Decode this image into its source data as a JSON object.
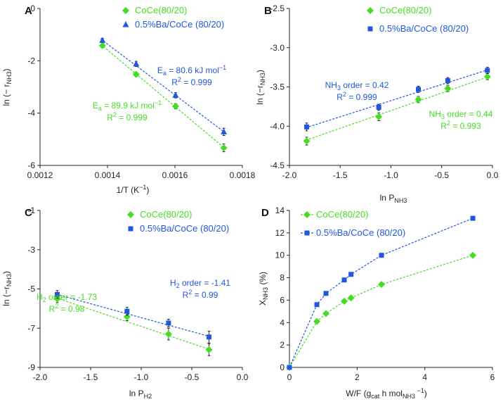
{
  "colors": {
    "green": "#44dd22",
    "blue": "#1f57e0",
    "axis": "#222222",
    "errorbar": "#000000"
  },
  "chart_data": [
    {
      "id": "A",
      "panel_label": "A",
      "type": "scatter",
      "xlabel": "1/T (K",
      "xlabel_sup": "−1",
      "xlabel_tail": ")",
      "ylabel": "ln (− r",
      "ylabel_sub": "NH3",
      "ylabel_tail": ")",
      "xlim": [
        0.0012,
        0.0018
      ],
      "ylim": [
        -6,
        0
      ],
      "xticks": [
        0.0012,
        0.0014,
        0.0016,
        0.0018
      ],
      "xtick_labels": [
        "0.0012",
        "0.0014",
        "0.0016",
        "0.0018"
      ],
      "yticks": [
        0,
        -2,
        -4,
        -6
      ],
      "ytick_labels": [
        "0",
        "-2",
        "-4",
        "-6"
      ],
      "series": [
        {
          "name": "CoCe(80/20)",
          "color": "green",
          "marker": "diamond",
          "x": [
            0.001385,
            0.001485,
            0.001602,
            0.001745
          ],
          "y": [
            -1.42,
            -2.52,
            -3.74,
            -5.33
          ],
          "err": [
            0.08,
            0.08,
            0.1,
            0.15
          ],
          "fit": [
            [
              0.00138,
              -1.37
            ],
            [
              0.00175,
              -5.37
            ]
          ]
        },
        {
          "name": "0.5%Ba/CoCe (80/20)",
          "color": "blue",
          "marker": "triangle",
          "x": [
            0.001385,
            0.001485,
            0.001602,
            0.001745
          ],
          "y": [
            -1.22,
            -2.12,
            -3.32,
            -4.72
          ],
          "err": [
            0.08,
            0.1,
            0.1,
            0.14
          ],
          "fit": [
            [
              0.00138,
              -1.17
            ],
            [
              0.00175,
              -4.76
            ]
          ]
        }
      ],
      "annotations": [
        {
          "series": 1,
          "lines": [
            {
              "pre": "E",
              "sub": "a",
              "post": " = 80.6 kJ mol",
              "sup": "−1"
            },
            {
              "pre": "R",
              "sup": "2",
              "post": " = 0.999"
            }
          ]
        },
        {
          "series": 0,
          "lines": [
            {
              "pre": "E",
              "sub": "a",
              "post": " = 89.9 kJ mol",
              "sup": "−1"
            },
            {
              "pre": "R",
              "sup": "2",
              "post": " = 0.999"
            }
          ]
        }
      ]
    },
    {
      "id": "B",
      "panel_label": "B",
      "type": "scatter",
      "xlabel": "ln P",
      "xlabel_sub": "NH3",
      "ylabel": "ln (−r",
      "ylabel_sub": "NH3",
      "ylabel_tail": ")",
      "xlim": [
        -2.0,
        0.0
      ],
      "ylim": [
        -4.5,
        -2.5
      ],
      "xticks": [
        -2.0,
        -1.5,
        -1.0,
        -0.5,
        0.0
      ],
      "xtick_labels": [
        "-2.0",
        "-1.5",
        "-1.0",
        "-0.5",
        "0.0"
      ],
      "yticks": [
        -2.5,
        -3.0,
        -3.5,
        -4.0,
        -4.5
      ],
      "ytick_labels": [
        "-2.5",
        "-3.0",
        "-3.5",
        "-4.0",
        "-4.5"
      ],
      "series": [
        {
          "name": "CoCe(80/20)",
          "color": "green",
          "marker": "diamond",
          "x": [
            -1.83,
            -1.12,
            -0.73,
            -0.44,
            -0.05
          ],
          "y": [
            -4.19,
            -3.88,
            -3.66,
            -3.52,
            -3.37
          ],
          "err": [
            0.05,
            0.05,
            0.04,
            0.04,
            0.04
          ],
          "fit": [
            [
              -1.84,
              -4.18
            ],
            [
              -0.04,
              -3.37
            ]
          ]
        },
        {
          "name": "0.5%Ba/CoCe (80/20)",
          "color": "blue",
          "marker": "square",
          "x": [
            -1.83,
            -1.12,
            -0.73,
            -0.44,
            -0.05
          ],
          "y": [
            -4.01,
            -3.76,
            -3.53,
            -3.42,
            -3.29
          ],
          "err": [
            0.05,
            0.04,
            0.04,
            0.04,
            0.04
          ],
          "fit": [
            [
              -1.84,
              -4.02
            ],
            [
              -0.04,
              -3.28
            ]
          ]
        }
      ],
      "annotations": [
        {
          "series": 1,
          "lines": [
            {
              "pre": "NH",
              "sub": "3",
              "post": " order = 0.42"
            },
            {
              "pre": "R",
              "sup": "2",
              "post": " = 0.999"
            }
          ]
        },
        {
          "series": 0,
          "lines": [
            {
              "pre": "NH",
              "sub": "3",
              "post": " order = 0.44"
            },
            {
              "pre": "R",
              "sup": "2",
              "post": " = 0.993"
            }
          ]
        }
      ]
    },
    {
      "id": "C",
      "panel_label": "C",
      "type": "scatter",
      "xlabel": "ln P",
      "xlabel_sub": "H2",
      "ylabel": "ln (−r",
      "ylabel_sub": "NH3",
      "ylabel_tail": ")",
      "xlim": [
        -2.0,
        0.0
      ],
      "ylim": [
        -9,
        -1
      ],
      "xticks": [
        -2.0,
        -1.5,
        -1.0,
        -0.5,
        0.0
      ],
      "xtick_labels": [
        "-2.0",
        "-1.5",
        "-1.0",
        "-0.5",
        "0.0"
      ],
      "yticks": [
        -1,
        -3,
        -5,
        -7,
        -9
      ],
      "ytick_labels": [
        "-1",
        "-3",
        "-5",
        "-7",
        "-9"
      ],
      "series": [
        {
          "name": "CoCe(80/20)",
          "color": "green",
          "marker": "diamond",
          "x": [
            -1.83,
            -1.14,
            -0.73,
            -0.33
          ],
          "y": [
            -5.5,
            -6.42,
            -7.3,
            -8.1
          ],
          "err": [
            0.2,
            0.2,
            0.3,
            0.3
          ],
          "fit": [
            [
              -1.84,
              -5.46
            ],
            [
              -0.32,
              -8.09
            ]
          ]
        },
        {
          "name": "0.5%Ba/CoCe (80/20)",
          "color": "blue",
          "marker": "square",
          "x": [
            -1.83,
            -1.14,
            -0.73,
            -0.33
          ],
          "y": [
            -5.28,
            -6.14,
            -6.74,
            -7.45
          ],
          "err": [
            0.2,
            0.2,
            0.2,
            0.3
          ],
          "fit": [
            [
              -1.84,
              -5.27
            ],
            [
              -0.32,
              -7.43
            ]
          ]
        }
      ],
      "annotations": [
        {
          "series": 1,
          "lines": [
            {
              "pre": "H",
              "sub": "2",
              "post": " order =  -1.41"
            },
            {
              "pre": "R",
              "sup": "2",
              "post": " = 0.99"
            }
          ]
        },
        {
          "series": 0,
          "lines": [
            {
              "pre": "H",
              "sub": "2",
              "post": " order = -1.73"
            },
            {
              "pre": "R",
              "sup": "2",
              "post": " = 0.98"
            }
          ]
        }
      ]
    },
    {
      "id": "D",
      "panel_label": "D",
      "type": "line",
      "xlabel": "W/F (g",
      "xlabel_sub": "cat",
      "xlabel_mid": " h mol",
      "xlabel_sub2": "NH3",
      "xlabel_sup": " −1",
      "xlabel_tail": ")",
      "ylabel": "X",
      "ylabel_sub": "NH3",
      "ylabel_tail": " (%)",
      "xlim": [
        0,
        6
      ],
      "ylim": [
        0,
        14
      ],
      "xticks": [
        0,
        2,
        4,
        6
      ],
      "xtick_labels": [
        "0",
        "2",
        "4",
        "6"
      ],
      "yticks": [
        0,
        2,
        4,
        6,
        8,
        10,
        12,
        14
      ],
      "ytick_labels": [
        "0",
        "2",
        "4",
        "6",
        "8",
        "10",
        "12",
        "14"
      ],
      "series": [
        {
          "name": "CoCe(80/20)",
          "color": "green",
          "marker": "diamond",
          "x": [
            0,
            0.81,
            1.08,
            1.62,
            1.82,
            2.72,
            5.42
          ],
          "y": [
            0,
            4.1,
            4.8,
            5.9,
            6.2,
            7.4,
            10.0
          ]
        },
        {
          "name": "0.5%Ba/CoCe (80/20)",
          "color": "blue",
          "marker": "square",
          "x": [
            0,
            0.81,
            1.08,
            1.62,
            1.82,
            2.72,
            5.42
          ],
          "y": [
            0,
            5.6,
            6.6,
            7.8,
            8.3,
            10.0,
            13.3
          ]
        }
      ]
    }
  ]
}
